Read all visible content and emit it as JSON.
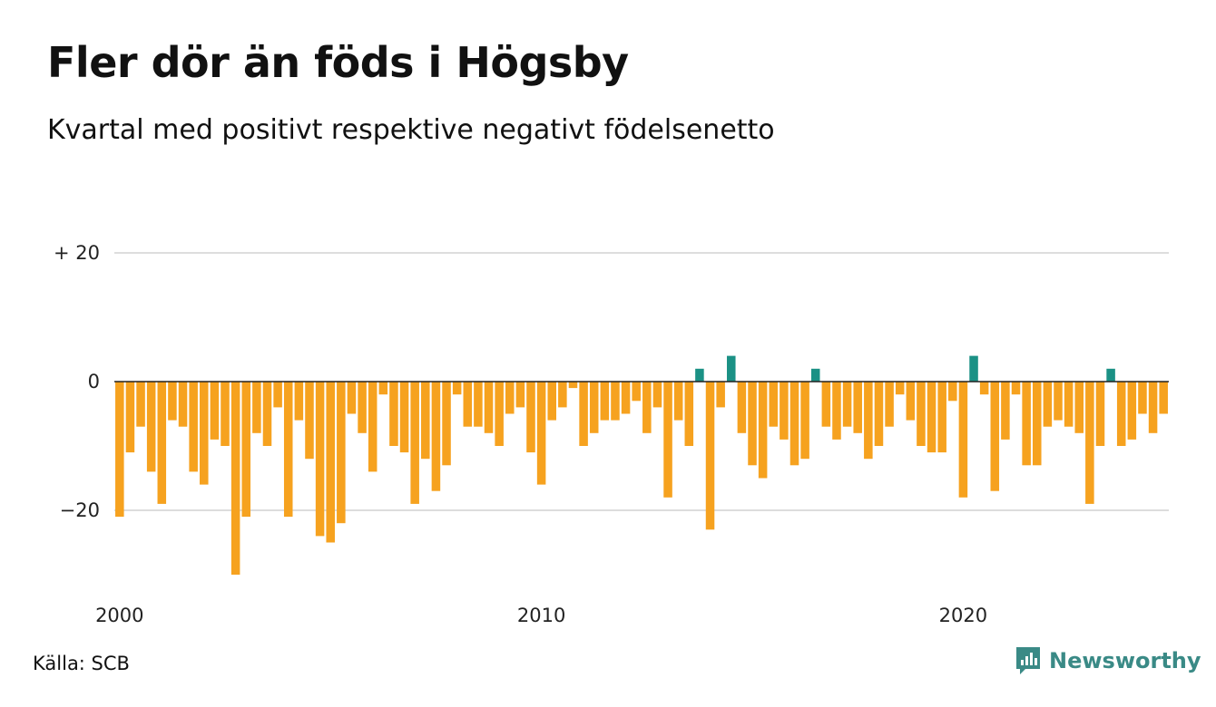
{
  "title": "Fler dör än föds i Högsby",
  "subtitle": "Kvartal med positivt respektive negativt födelsenetto",
  "source": "Källa: SCB",
  "brand": {
    "name": "Newsworthy",
    "icon": "newsworthy-logo-icon",
    "color": "#3a8a86"
  },
  "chart_data": {
    "type": "bar",
    "title": "Fler dör än föds i Högsby",
    "subtitle": "Kvartal med positivt respektive negativt födelsenetto",
    "start": "2000 Q1",
    "frequency": "quarterly",
    "ylim": [
      -30,
      20
    ],
    "y_ticks": [
      {
        "value": 20,
        "label": "+ 20"
      },
      {
        "value": 0,
        "label": "0"
      },
      {
        "value": -20,
        "label": "−20"
      }
    ],
    "x_ticks": [
      {
        "value": 2000,
        "label": "2000"
      },
      {
        "value": 2010,
        "label": "2010"
      },
      {
        "value": 2020,
        "label": "2020"
      }
    ],
    "grid": true,
    "colors": {
      "positive": "#1b9185",
      "negative": "#f6a21f",
      "grid": "#dddddd",
      "zero_line": "#222222"
    },
    "values": [
      -21,
      -11,
      -7,
      -14,
      -19,
      -6,
      -7,
      -14,
      -16,
      -9,
      -10,
      -30,
      -21,
      -8,
      -10,
      -4,
      -21,
      -6,
      -12,
      -24,
      -25,
      -22,
      -5,
      -8,
      -14,
      -2,
      -10,
      -11,
      -19,
      -12,
      -17,
      -13,
      -2,
      -7,
      -7,
      -8,
      -10,
      -5,
      -4,
      -11,
      -16,
      -6,
      -4,
      -1,
      -10,
      -8,
      -6,
      -6,
      -5,
      -3,
      -8,
      -4,
      -18,
      -6,
      -10,
      2,
      -23,
      -4,
      4,
      -8,
      -13,
      -15,
      -7,
      -9,
      -13,
      -12,
      2,
      -7,
      -9,
      -7,
      -8,
      -12,
      -10,
      -7,
      -2,
      -6,
      -10,
      -11,
      -11,
      -3,
      -18,
      4,
      -2,
      -17,
      -9,
      -2,
      -13,
      -13,
      -7,
      -6,
      -7,
      -8,
      -19,
      -10,
      2,
      -10,
      -9,
      -5,
      -8,
      -5
    ]
  }
}
